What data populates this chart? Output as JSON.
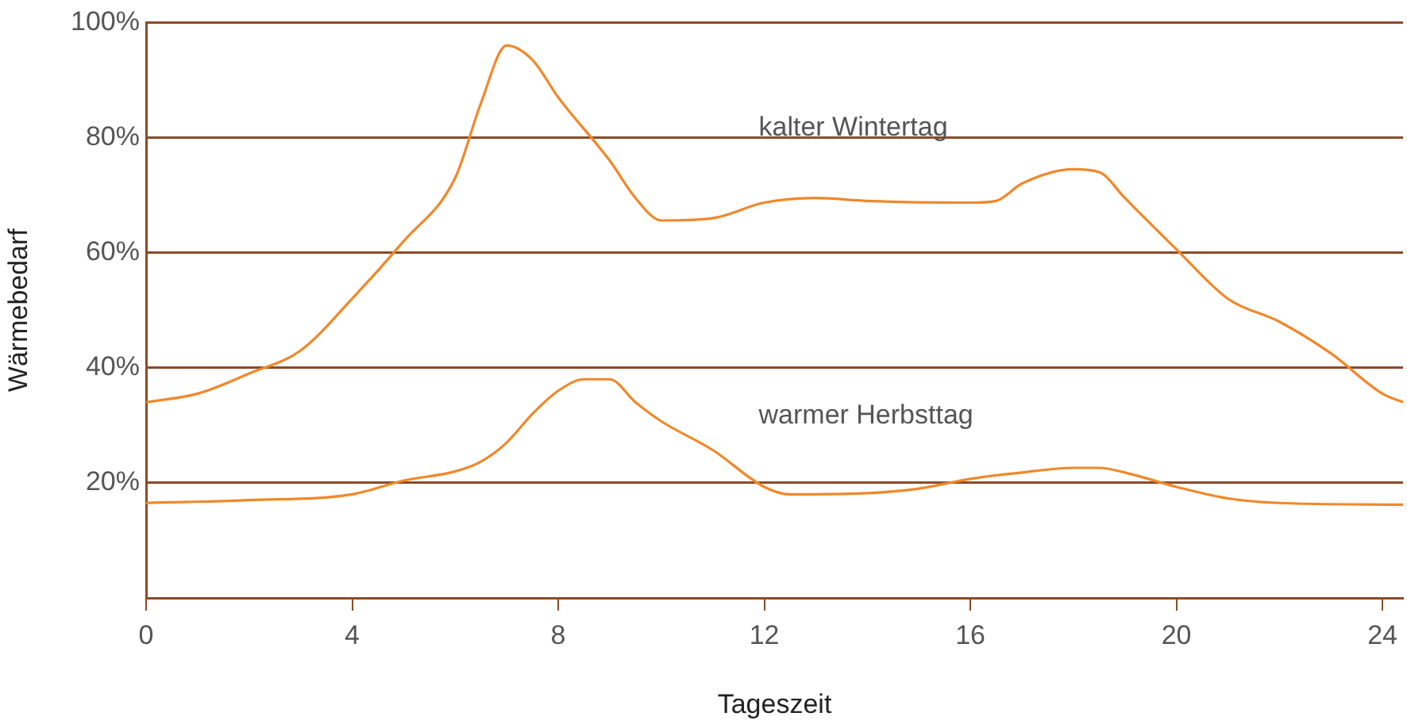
{
  "chart_data": {
    "type": "line",
    "xlabel": "Tageszeit",
    "ylabel": "Wärmebedarf",
    "xlim": [
      0,
      24.4
    ],
    "xticks": [
      0,
      4,
      8,
      12,
      16,
      20,
      24
    ],
    "ylim": [
      0,
      100
    ],
    "yticks": [
      {
        "value": 0,
        "label": null
      },
      {
        "value": 20,
        "label": "20%"
      },
      {
        "value": 40,
        "label": "40%"
      },
      {
        "value": 60,
        "label": "60%"
      },
      {
        "value": 80,
        "label": "80%"
      },
      {
        "value": 100,
        "label": "100%"
      }
    ],
    "grid": "y",
    "legend": false,
    "marker": "none",
    "line_style": "solid",
    "series": [
      {
        "name": "kalter Wintertag",
        "color": "#f0882a",
        "x": [
          0,
          1,
          2,
          3,
          4,
          5,
          6,
          6.5,
          7,
          7.5,
          8,
          9,
          9.5,
          10,
          11,
          12,
          13,
          14,
          16,
          16.5,
          17,
          18,
          18.5,
          19,
          20,
          21,
          22,
          23,
          24,
          24.4
        ],
        "values": [
          34,
          35.5,
          39,
          43,
          52,
          62,
          73,
          86,
          96,
          93.5,
          87,
          76,
          69.5,
          65.6,
          66,
          68.7,
          69.5,
          69,
          68.7,
          69,
          72,
          74.5,
          74,
          69.5,
          60.6,
          52,
          48,
          42.5,
          35.5,
          34
        ]
      },
      {
        "name": "warmer Herbsttag",
        "color": "#f0882a",
        "x": [
          0,
          2,
          4,
          5,
          6,
          6.5,
          7,
          7.5,
          8,
          8.5,
          9,
          9.5,
          10,
          11,
          12,
          12.5,
          14,
          15,
          16,
          17,
          18,
          18.5,
          19,
          20,
          21,
          22,
          24.4
        ],
        "values": [
          16.5,
          17,
          18,
          20.4,
          22,
          23.7,
          27,
          32,
          36,
          38,
          38,
          34,
          30.7,
          25.7,
          19.3,
          18,
          18.2,
          19,
          20.7,
          21.8,
          22.6,
          22.6,
          21.8,
          19.3,
          17.3,
          16.5,
          16.2
        ]
      }
    ]
  }
}
